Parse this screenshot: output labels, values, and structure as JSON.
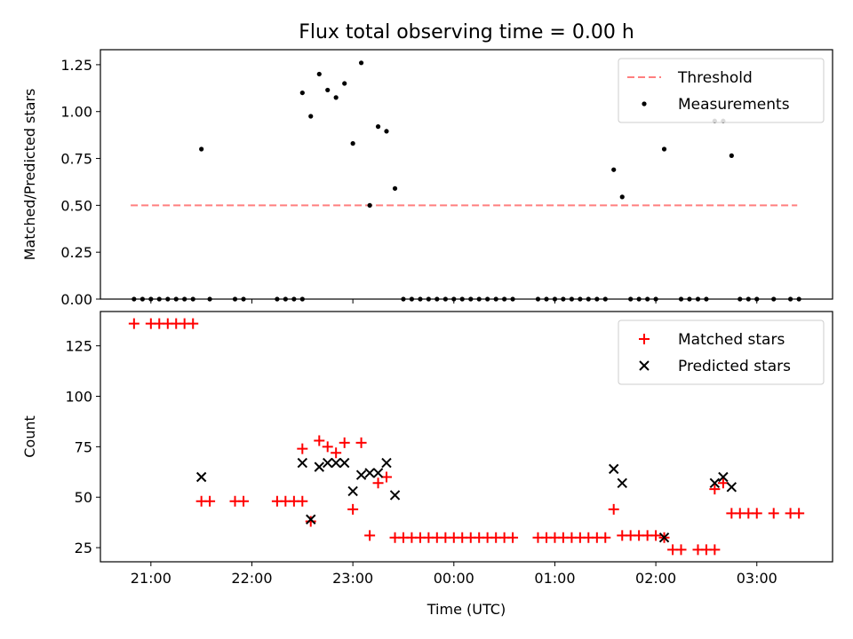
{
  "title": "Flux total observing time = 0.00 h",
  "chart_data": [
    {
      "type": "scatter",
      "panel": "top",
      "title": "Flux total observing time = 0.00 h",
      "xlabel": "",
      "ylabel": "Matched/Predicted stars",
      "x_unit": "hours relative to 00:00 UTC",
      "xlim": [
        -3.5,
        3.75
      ],
      "ylim": [
        0.0,
        1.33
      ],
      "yticks": [
        0.0,
        0.25,
        0.5,
        0.75,
        1.0,
        1.25
      ],
      "ytick_labels": [
        "0.00",
        "0.25",
        "0.50",
        "0.75",
        "1.00",
        "1.25"
      ],
      "legend_position": "top-right",
      "threshold": {
        "name": "Threshold",
        "color": "#ff7f7f",
        "style": "dashed",
        "x_range": [
          -3.2,
          3.4
        ],
        "value": 0.5
      },
      "series": [
        {
          "name": "Measurements",
          "color": "#000000",
          "marker": "dot",
          "points": [
            [
              -3.167,
              0.0
            ],
            [
              -3.083,
              0.0
            ],
            [
              -3.0,
              0.0
            ],
            [
              -2.917,
              0.0
            ],
            [
              -2.833,
              0.0
            ],
            [
              -2.75,
              0.0
            ],
            [
              -2.667,
              0.0
            ],
            [
              -2.583,
              0.0
            ],
            [
              -2.5,
              0.8
            ],
            [
              -2.417,
              0.0
            ],
            [
              -2.167,
              0.0
            ],
            [
              -2.083,
              0.0
            ],
            [
              -1.75,
              0.0
            ],
            [
              -1.667,
              0.0
            ],
            [
              -1.583,
              0.0
            ],
            [
              -1.5,
              0.0
            ],
            [
              -1.5,
              1.1
            ],
            [
              -1.417,
              0.975
            ],
            [
              -1.333,
              1.2
            ],
            [
              -1.25,
              1.115
            ],
            [
              -1.167,
              1.075
            ],
            [
              -1.083,
              1.15
            ],
            [
              -1.0,
              0.83
            ],
            [
              -0.917,
              1.26
            ],
            [
              -0.833,
              0.5
            ],
            [
              -0.75,
              0.92
            ],
            [
              -0.667,
              0.895
            ],
            [
              -0.583,
              0.59
            ],
            [
              -0.5,
              0.0
            ],
            [
              -0.417,
              0.0
            ],
            [
              -0.333,
              0.0
            ],
            [
              -0.25,
              0.0
            ],
            [
              -0.167,
              0.0
            ],
            [
              -0.083,
              0.0
            ],
            [
              0.0,
              0.0
            ],
            [
              0.083,
              0.0
            ],
            [
              0.167,
              0.0
            ],
            [
              0.25,
              0.0
            ],
            [
              0.333,
              0.0
            ],
            [
              0.417,
              0.0
            ],
            [
              0.5,
              0.0
            ],
            [
              0.583,
              0.0
            ],
            [
              0.833,
              0.0
            ],
            [
              0.917,
              0.0
            ],
            [
              1.0,
              0.0
            ],
            [
              1.083,
              0.0
            ],
            [
              1.167,
              0.0
            ],
            [
              1.25,
              0.0
            ],
            [
              1.333,
              0.0
            ],
            [
              1.417,
              0.0
            ],
            [
              1.5,
              0.0
            ],
            [
              1.583,
              0.69
            ],
            [
              1.667,
              0.545
            ],
            [
              1.75,
              0.0
            ],
            [
              1.833,
              0.0
            ],
            [
              1.917,
              0.0
            ],
            [
              2.0,
              0.0
            ],
            [
              2.083,
              0.8
            ],
            [
              2.25,
              0.0
            ],
            [
              2.333,
              0.0
            ],
            [
              2.417,
              0.0
            ],
            [
              2.5,
              0.0
            ],
            [
              2.583,
              0.95
            ],
            [
              2.667,
              0.95
            ],
            [
              2.75,
              0.765
            ],
            [
              2.833,
              0.0
            ],
            [
              2.917,
              0.0
            ],
            [
              3.0,
              0.0
            ],
            [
              3.167,
              0.0
            ],
            [
              3.333,
              0.0
            ],
            [
              3.417,
              0.0
            ]
          ]
        }
      ]
    },
    {
      "type": "scatter",
      "panel": "bottom",
      "title": "",
      "xlabel": "Time (UTC)",
      "ylabel": "Count",
      "x_unit": "hours relative to 00:00 UTC",
      "xlim": [
        -3.5,
        3.75
      ],
      "ylim": [
        18,
        142
      ],
      "yticks": [
        25,
        50,
        75,
        100,
        125
      ],
      "ytick_labels": [
        "25",
        "50",
        "75",
        "100",
        "125"
      ],
      "xticks": [
        -3,
        -2,
        -1,
        0,
        1,
        2,
        3
      ],
      "xtick_labels": [
        "21:00",
        "22:00",
        "23:00",
        "00:00",
        "01:00",
        "02:00",
        "03:00"
      ],
      "legend_position": "top-right",
      "series": [
        {
          "name": "Matched stars",
          "color": "#ff0000",
          "marker": "plus",
          "points": [
            [
              -3.167,
              136
            ],
            [
              -3.0,
              136
            ],
            [
              -2.917,
              136
            ],
            [
              -2.833,
              136
            ],
            [
              -2.75,
              136
            ],
            [
              -2.667,
              136
            ],
            [
              -2.583,
              136
            ],
            [
              -2.5,
              48
            ],
            [
              -2.417,
              48
            ],
            [
              -2.167,
              48
            ],
            [
              -2.083,
              48
            ],
            [
              -1.75,
              48
            ],
            [
              -1.667,
              48
            ],
            [
              -1.583,
              48
            ],
            [
              -1.5,
              48
            ],
            [
              -1.5,
              74
            ],
            [
              -1.417,
              38
            ],
            [
              -1.333,
              78
            ],
            [
              -1.25,
              75
            ],
            [
              -1.167,
              72
            ],
            [
              -1.083,
              77
            ],
            [
              -1.0,
              44
            ],
            [
              -0.917,
              77
            ],
            [
              -0.833,
              31
            ],
            [
              -0.75,
              57
            ],
            [
              -0.667,
              60
            ],
            [
              -0.583,
              30
            ],
            [
              -0.5,
              30
            ],
            [
              -0.417,
              30
            ],
            [
              -0.333,
              30
            ],
            [
              -0.25,
              30
            ],
            [
              -0.167,
              30
            ],
            [
              -0.083,
              30
            ],
            [
              0.0,
              30
            ],
            [
              0.083,
              30
            ],
            [
              0.167,
              30
            ],
            [
              0.25,
              30
            ],
            [
              0.333,
              30
            ],
            [
              0.417,
              30
            ],
            [
              0.5,
              30
            ],
            [
              0.583,
              30
            ],
            [
              0.833,
              30
            ],
            [
              0.917,
              30
            ],
            [
              1.0,
              30
            ],
            [
              1.083,
              30
            ],
            [
              1.167,
              30
            ],
            [
              1.25,
              30
            ],
            [
              1.333,
              30
            ],
            [
              1.417,
              30
            ],
            [
              1.5,
              30
            ],
            [
              1.583,
              44
            ],
            [
              1.667,
              31
            ],
            [
              1.75,
              31
            ],
            [
              1.833,
              31
            ],
            [
              1.917,
              31
            ],
            [
              2.0,
              31
            ],
            [
              2.083,
              30
            ],
            [
              2.167,
              24
            ],
            [
              2.25,
              24
            ],
            [
              2.417,
              24
            ],
            [
              2.5,
              24
            ],
            [
              2.583,
              24
            ],
            [
              2.583,
              54
            ],
            [
              2.667,
              57
            ],
            [
              2.75,
              42
            ],
            [
              2.833,
              42
            ],
            [
              2.917,
              42
            ],
            [
              3.0,
              42
            ],
            [
              3.167,
              42
            ],
            [
              3.333,
              42
            ],
            [
              3.417,
              42
            ]
          ]
        },
        {
          "name": "Predicted stars",
          "color": "#000000",
          "marker": "x",
          "points": [
            [
              -2.5,
              60
            ],
            [
              -1.5,
              67
            ],
            [
              -1.417,
              39
            ],
            [
              -1.333,
              65
            ],
            [
              -1.25,
              67
            ],
            [
              -1.167,
              67
            ],
            [
              -1.083,
              67
            ],
            [
              -1.0,
              53
            ],
            [
              -0.917,
              61
            ],
            [
              -0.833,
              62
            ],
            [
              -0.75,
              62
            ],
            [
              -0.667,
              67
            ],
            [
              -0.583,
              51
            ],
            [
              1.583,
              64
            ],
            [
              1.667,
              57
            ],
            [
              2.083,
              30
            ],
            [
              2.583,
              57
            ],
            [
              2.667,
              60
            ],
            [
              2.75,
              55
            ]
          ]
        }
      ]
    }
  ]
}
